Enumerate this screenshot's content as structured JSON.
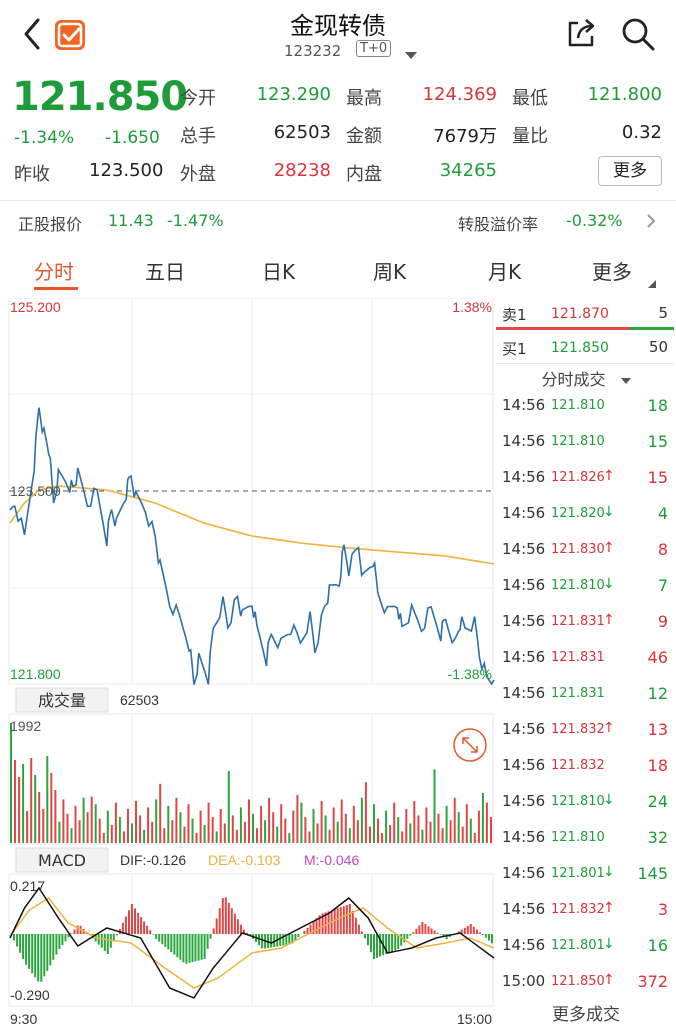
{
  "header": {
    "title": "金现转债",
    "code": "123232",
    "trade_mode": "T+0"
  },
  "quote": {
    "price": "121.850",
    "change_pct": "-1.34%",
    "change_abs": "-1.650",
    "prev_close_label": "昨收",
    "prev_close": "123.500",
    "open_label": "今开",
    "open": "123.290",
    "high_label": "最高",
    "high": "124.369",
    "low_label": "最低",
    "low": "121.800",
    "volume_label": "总手",
    "volume": "62503",
    "amount_label": "金额",
    "amount": "7679万",
    "ratio_label": "量比",
    "ratio": "0.32",
    "outer_label": "外盘",
    "outer": "28238",
    "inner_label": "内盘",
    "inner": "34265",
    "more_label": "更多"
  },
  "premium": {
    "stock_label": "正股报价",
    "stock_price": "11.43",
    "stock_pct": "-1.47%",
    "premium_label": "转股溢价率",
    "premium_value": "-0.32%"
  },
  "tabs": [
    "分时",
    "五日",
    "日K",
    "周K",
    "月K",
    "更多"
  ],
  "chart": {
    "price_max": "125.200",
    "price_min": "121.800",
    "pct_max": "1.38%",
    "pct_min": "-1.38%",
    "ref_price": "123.500",
    "volume_label": "成交量",
    "volume_value": "62503",
    "volume_max": "1992",
    "macd_label": "MACD",
    "dif": "DIF:-0.126",
    "dea": "DEA:-0.103",
    "m": "M:-0.046",
    "macd_max": "0.217",
    "macd_min": "-0.290",
    "time_start": "9:30",
    "time_end": "15:00",
    "colors": {
      "price_line": "#2d6fa8",
      "avg_line": "#efb23b",
      "up": "#e04646",
      "down": "#2aa63c"
    }
  },
  "book": {
    "sell": {
      "label": "卖1",
      "price": "121.870",
      "vol": "5"
    },
    "buy": {
      "label": "买1",
      "price": "121.850",
      "vol": "50"
    },
    "trades_title": "分时成交",
    "more_label": "更多成交",
    "trades": [
      {
        "time": "14:56",
        "price": "121.810",
        "dir": "",
        "vol": "18",
        "color": "green"
      },
      {
        "time": "14:56",
        "price": "121.810",
        "dir": "",
        "vol": "15",
        "color": "green"
      },
      {
        "time": "14:56",
        "price": "121.826",
        "dir": "↑",
        "vol": "15",
        "color": "red"
      },
      {
        "time": "14:56",
        "price": "121.820",
        "dir": "↓",
        "vol": "4",
        "color": "green"
      },
      {
        "time": "14:56",
        "price": "121.830",
        "dir": "↑",
        "vol": "8",
        "color": "red"
      },
      {
        "time": "14:56",
        "price": "121.810",
        "dir": "↓",
        "vol": "7",
        "color": "green"
      },
      {
        "time": "14:56",
        "price": "121.831",
        "dir": "↑",
        "vol": "9",
        "color": "red"
      },
      {
        "time": "14:56",
        "price": "121.831",
        "dir": "",
        "vol": "46",
        "color": "red"
      },
      {
        "time": "14:56",
        "price": "121.831",
        "dir": "",
        "vol": "12",
        "color": "green"
      },
      {
        "time": "14:56",
        "price": "121.832",
        "dir": "↑",
        "vol": "13",
        "color": "red"
      },
      {
        "time": "14:56",
        "price": "121.832",
        "dir": "",
        "vol": "18",
        "color": "red"
      },
      {
        "time": "14:56",
        "price": "121.810",
        "dir": "↓",
        "vol": "24",
        "color": "green"
      },
      {
        "time": "14:56",
        "price": "121.810",
        "dir": "",
        "vol": "32",
        "color": "green"
      },
      {
        "time": "14:56",
        "price": "121.801",
        "dir": "↓",
        "vol": "145",
        "color": "green"
      },
      {
        "time": "14:56",
        "price": "121.832",
        "dir": "↑",
        "vol": "3",
        "color": "red"
      },
      {
        "time": "14:56",
        "price": "121.801",
        "dir": "↓",
        "vol": "16",
        "color": "green"
      },
      {
        "time": "15:00",
        "price": "121.850",
        "dir": "↑",
        "vol": "372",
        "color": "red"
      }
    ]
  }
}
